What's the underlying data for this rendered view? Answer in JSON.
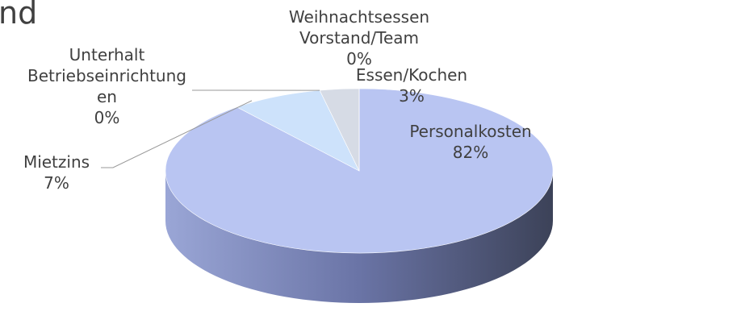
{
  "chart_data": {
    "type": "pie3d",
    "title": "nd",
    "categories": [
      "Personalkosten",
      "Mietzins",
      "Unterhalt Betriebseinrichtungen",
      "Essen/Kochen",
      "Weihnachtsessen Vorstand/Team"
    ],
    "values": [
      82,
      7,
      0,
      3,
      0
    ],
    "value_labels": [
      "82%",
      "7%",
      "0%",
      "3%",
      "0%"
    ],
    "colors": [
      "#b9c5f2",
      "#cde2fb",
      "#dfe3ea",
      "#d6dbe5",
      "#e9edf3"
    ]
  }
}
